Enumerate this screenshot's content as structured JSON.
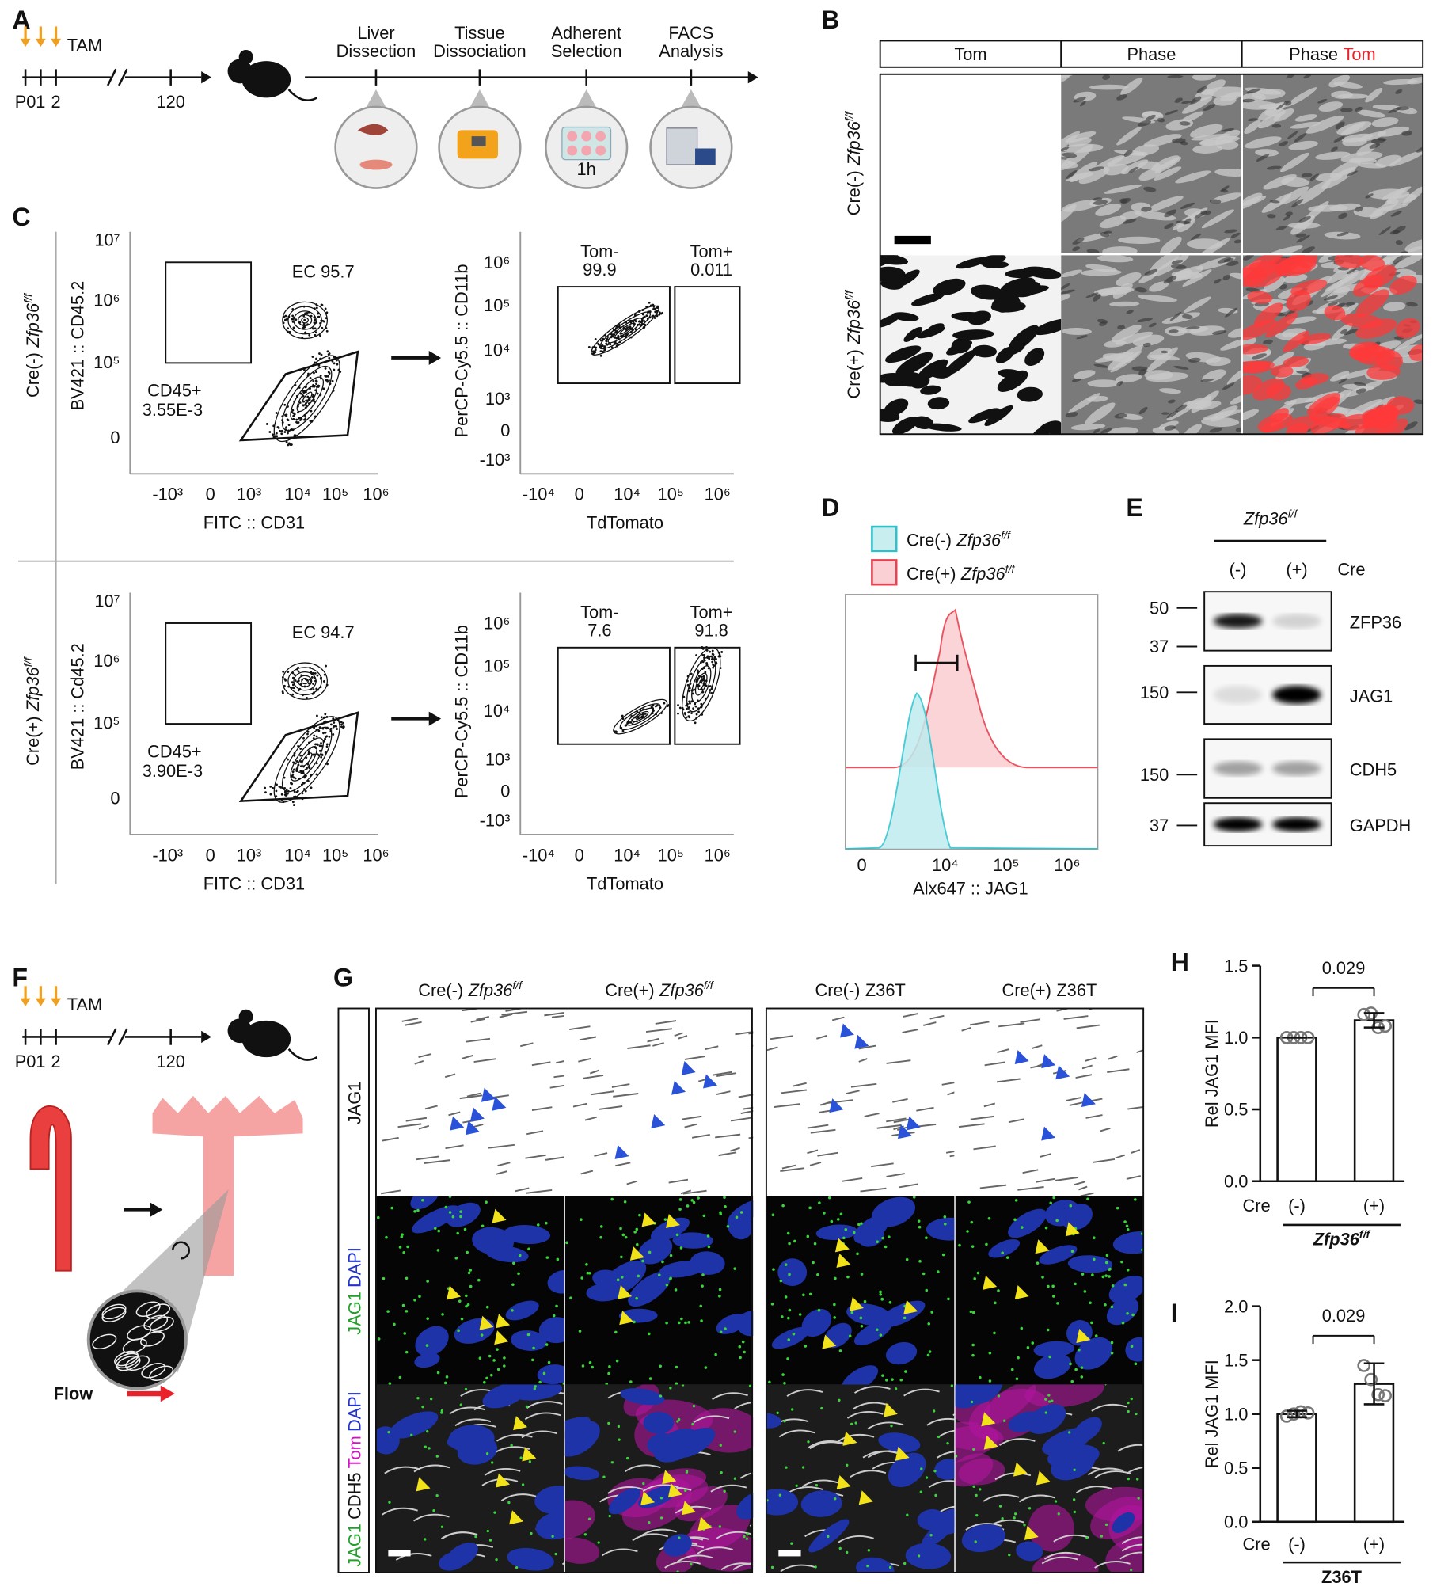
{
  "panels": {
    "a": "A",
    "b": "B",
    "c": "C",
    "d": "D",
    "e": "E",
    "f": "F",
    "g": "G",
    "h": "H",
    "i": "I"
  },
  "genotype": {
    "cre_neg": "Cre(-)",
    "cre_pos": "Cre(+)",
    "gene": "Zfp36",
    "sup": "f/f"
  },
  "a": {
    "tam": "TAM",
    "days": [
      "P0",
      "1",
      "2",
      "120"
    ],
    "steps": [
      [
        "Liver",
        "Dissection"
      ],
      [
        "Tissue",
        "Dissociation"
      ],
      [
        "Adherent",
        "Selection"
      ],
      [
        "FACS",
        "Analysis"
      ]
    ],
    "plate_time": "1h"
  },
  "b": {
    "columns": [
      "Tom",
      "Phase"
    ]
  },
  "c": {
    "y_label_top": "BV421 :: CD45.2",
    "y_label_bottom": "BV421 :: Cd45.2",
    "x_label": "FITC :: CD31",
    "y_label_right": "PerCP-Cy5.5 :: CD11b",
    "x_label_right": "TdTomato",
    "left_yticks": [
      "10⁷",
      "10⁶",
      "10⁵",
      "0"
    ],
    "left_xticks": [
      "-10³",
      "0",
      "10³",
      "10⁴",
      "10⁵",
      "10⁶"
    ],
    "right_yticks": [
      "10⁶",
      "10⁵",
      "10⁴",
      "10³",
      "0",
      "-10³"
    ],
    "right_xticks": [
      "-10⁴",
      "0",
      "10⁴",
      "10⁵",
      "10⁶"
    ],
    "rows": [
      {
        "ec": "EC 95.7",
        "cd45": [
          "CD45+",
          "3.55E-3"
        ],
        "tom_neg": [
          "Tom-",
          "99.9"
        ],
        "tom_pos": [
          "Tom+",
          "0.011"
        ]
      },
      {
        "ec": "EC 94.7",
        "cd45": [
          "CD45+",
          "3.90E-3"
        ],
        "tom_neg": [
          "Tom-",
          "7.6"
        ],
        "tom_pos": [
          "Tom+",
          "91.8"
        ]
      }
    ]
  },
  "d": {
    "x_label": "Alx647 :: JAG1",
    "xticks": [
      "0",
      "10⁴",
      "10⁵",
      "10⁶"
    ]
  },
  "e": {
    "lanes": [
      "(-)",
      "(+)"
    ],
    "cre": "Cre",
    "markers": [
      50,
      37,
      150,
      150,
      37
    ],
    "proteins": [
      "ZFP36",
      "JAG1",
      "CDH5",
      "GAPDH"
    ]
  },
  "f": {
    "tam": "TAM",
    "days": [
      "P0",
      "1",
      "2",
      "120"
    ],
    "flow": "Flow"
  },
  "g": {
    "z36t": "Z36T",
    "stains": [
      "JAG1",
      "DAPI",
      "CDH5",
      "Tom"
    ]
  },
  "h": {
    "type": "bar",
    "y_label": "Rel JAG1 MFI",
    "x_title": "Cre",
    "categories": [
      "(-)",
      "(+)"
    ],
    "group": "Zfp36",
    "group_sup": "f/f",
    "values": [
      1.0,
      1.12
    ],
    "errors": [
      0.0,
      0.05
    ],
    "points": [
      [
        1.0,
        1.0,
        1.0,
        1.0
      ],
      [
        1.16,
        1.17,
        1.07,
        1.08
      ]
    ],
    "p_value": 0.029,
    "ylim": [
      0,
      1.5
    ],
    "yticks": [
      {
        "value": 0,
        "label": "0.0"
      },
      {
        "value": 0.5,
        "label": "0.5"
      },
      {
        "value": 1,
        "label": "1.0"
      },
      {
        "value": 1.5,
        "label": "1.5"
      }
    ]
  },
  "i": {
    "type": "bar",
    "y_label": "Rel JAG1 MFI",
    "x_title": "Cre",
    "categories": [
      "(-)",
      "(+)"
    ],
    "group": "Z36T",
    "values": [
      1.0,
      1.28
    ],
    "errors": [
      0.03,
      0.19
    ],
    "points": [
      [
        0.98,
        1.0,
        1.02,
        1.01
      ],
      [
        1.45,
        1.32,
        1.18,
        1.17
      ]
    ],
    "p_value": 0.029,
    "ylim": [
      0,
      2
    ],
    "yticks": [
      {
        "value": 0,
        "label": "0.0"
      },
      {
        "value": 0.5,
        "label": "0.5"
      },
      {
        "value": 1,
        "label": "1.0"
      },
      {
        "value": 1.5,
        "label": "1.5"
      },
      {
        "value": 2,
        "label": "2.0"
      }
    ]
  }
}
